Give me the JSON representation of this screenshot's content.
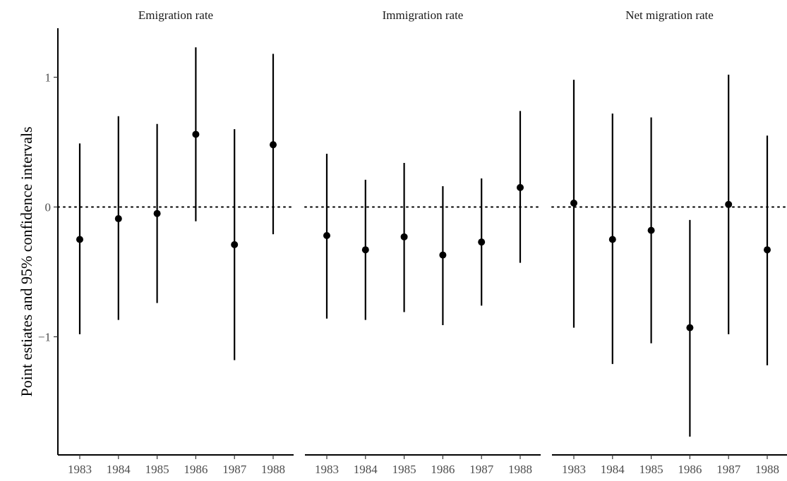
{
  "chart_data": {
    "type": "scatter",
    "ylabel": "Point estiates and 95% confidence intervals",
    "xlabel": "",
    "y_ticks": [
      1,
      0,
      -1
    ],
    "y_tick_labels": [
      "1",
      "0",
      "−1"
    ],
    "ylim": [
      -1.77,
      1.35
    ],
    "reference_line": {
      "y": 0,
      "style": "dotted"
    },
    "categories": [
      "1983",
      "1984",
      "1985",
      "1986",
      "1987",
      "1988"
    ],
    "grid": false,
    "point_color": "#000000",
    "panels": [
      {
        "title": "Emigration rate",
        "estimates": [
          -0.25,
          -0.09,
          -0.05,
          0.56,
          -0.29,
          0.48
        ],
        "lower": [
          -0.98,
          -0.87,
          -0.74,
          -0.11,
          -1.18,
          -0.21
        ],
        "upper": [
          0.49,
          0.7,
          0.64,
          1.23,
          0.6,
          1.18
        ]
      },
      {
        "title": "Immigration rate",
        "estimates": [
          -0.22,
          -0.33,
          -0.23,
          -0.37,
          -0.27,
          0.15
        ],
        "lower": [
          -0.86,
          -0.87,
          -0.81,
          -0.91,
          -0.76,
          -0.43
        ],
        "upper": [
          0.41,
          0.21,
          0.34,
          0.16,
          0.22,
          0.74
        ]
      },
      {
        "title": "Net migration rate",
        "estimates": [
          0.03,
          -0.25,
          -0.18,
          -0.93,
          0.02,
          -0.33
        ],
        "lower": [
          -0.93,
          -1.21,
          -1.05,
          -1.77,
          -0.98,
          -1.22
        ],
        "upper": [
          0.98,
          0.72,
          0.69,
          -0.1,
          1.02,
          0.55
        ]
      }
    ]
  }
}
